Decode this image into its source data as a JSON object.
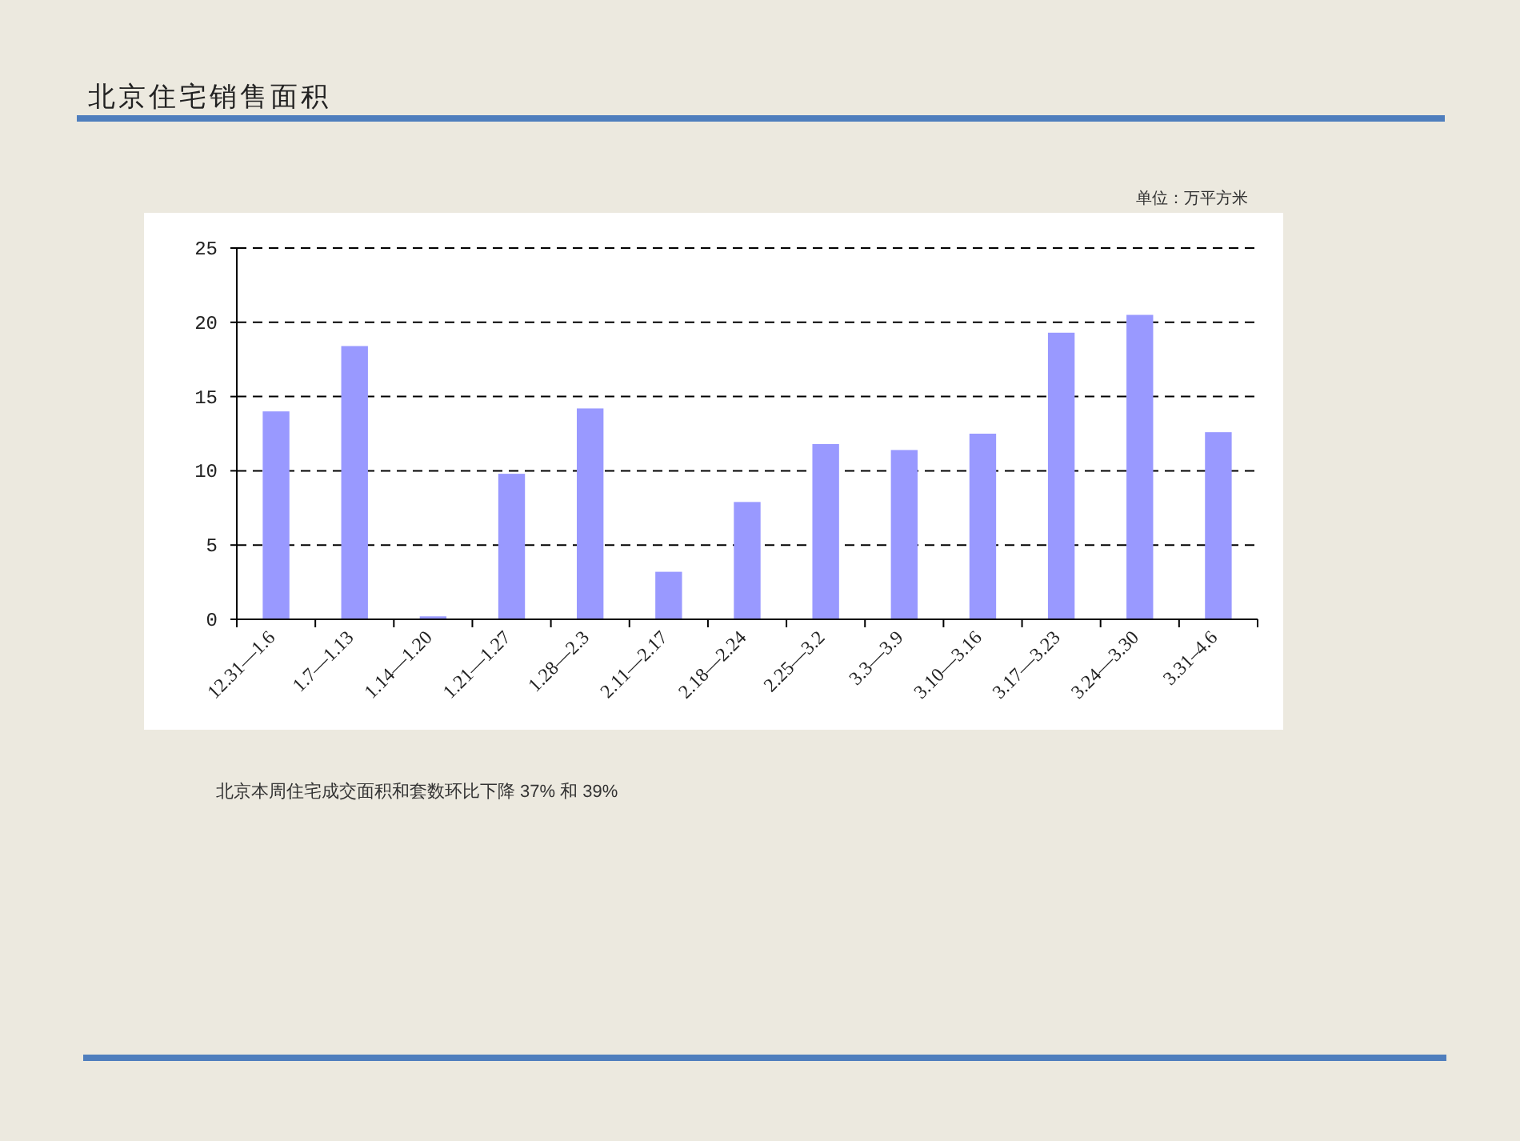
{
  "chart_data": {
    "type": "bar",
    "title": "北京住宅销售面积",
    "annotations": [
      "单位：万平方米",
      "北京本周住宅成交面积和套数环比下降 37% 和 39%"
    ],
    "categories": [
      "12.31—1.6",
      "1.7—1.13",
      "1.14—1.20",
      "1.21—1.27",
      "1.28—2.3",
      "2.11—2.17",
      "2.18—2.24",
      "2.25—3.2",
      "3.3—3.9",
      "3.10—3.16",
      "3.17—3.23",
      "3.24—3.30",
      "3.31–4.6"
    ],
    "values": [
      14.0,
      18.4,
      0.2,
      9.8,
      14.2,
      3.2,
      7.9,
      11.8,
      11.4,
      12.5,
      19.3,
      20.5,
      12.6
    ],
    "color": "#9999ff",
    "ylim": [
      0,
      25
    ],
    "yticks": [
      0,
      5,
      10,
      15,
      20,
      25
    ],
    "grid": "y"
  }
}
